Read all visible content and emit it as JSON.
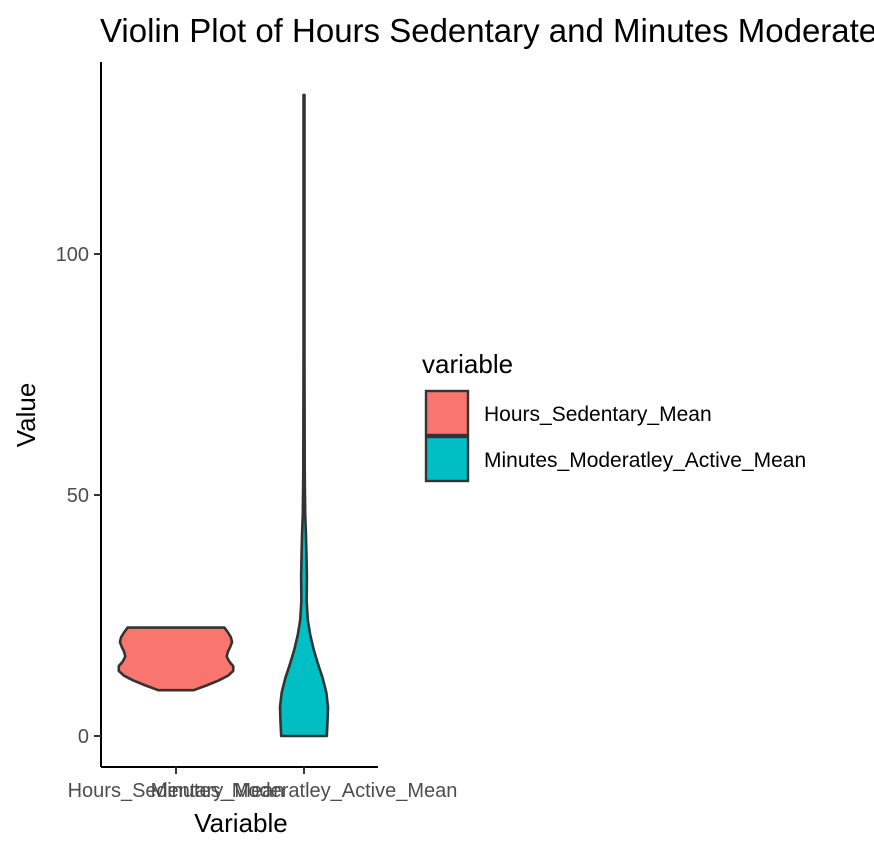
{
  "chart_data": {
    "type": "violin",
    "title": "Violin Plot of Hours Sedentary and Minutes Moderately Active",
    "xlabel": "Variable",
    "ylabel": "Value",
    "ylim": [
      -6,
      134
    ],
    "yticks": [
      0,
      50,
      100
    ],
    "grid": false,
    "legend": {
      "title": "variable",
      "placement": "right",
      "entries": [
        "Hours_Sedentary_Mean",
        "Minutes_Moderatley_Active_Mean"
      ]
    },
    "categories": [
      "Hours_Sedentary_Mean",
      "Minutes_Moderatley_Active_Mean"
    ],
    "series": [
      {
        "name": "Hours_Sedentary_Mean",
        "color": "#F8766D",
        "min": 9.5,
        "max": 22.5,
        "density": [
          [
            9.5,
            0.3
          ],
          [
            10.5,
            0.52
          ],
          [
            11.5,
            0.72
          ],
          [
            12.5,
            0.88
          ],
          [
            13.5,
            0.97
          ],
          [
            14.5,
            0.97
          ],
          [
            15.5,
            0.9
          ],
          [
            16.5,
            0.86
          ],
          [
            17.5,
            0.88
          ],
          [
            18.5,
            0.92
          ],
          [
            19.5,
            0.95
          ],
          [
            20.5,
            0.93
          ],
          [
            21.5,
            0.88
          ],
          [
            22.5,
            0.82
          ]
        ]
      },
      {
        "name": "Minutes_Moderatley_Active_Mean",
        "color": "#00BFC4",
        "min": 0,
        "max": 133,
        "density": [
          [
            0,
            0.95
          ],
          [
            3,
            0.98
          ],
          [
            6,
            1.0
          ],
          [
            9,
            0.93
          ],
          [
            12,
            0.78
          ],
          [
            15,
            0.58
          ],
          [
            18,
            0.4
          ],
          [
            21,
            0.26
          ],
          [
            24,
            0.16
          ],
          [
            28,
            0.11
          ],
          [
            33,
            0.12
          ],
          [
            38,
            0.1
          ],
          [
            42,
            0.08
          ],
          [
            46,
            0.05
          ],
          [
            50,
            0.04
          ],
          [
            55,
            0.03
          ],
          [
            65,
            0.025
          ],
          [
            80,
            0.02
          ],
          [
            100,
            0.02
          ],
          [
            120,
            0.02
          ],
          [
            133,
            0.02
          ]
        ]
      }
    ]
  }
}
